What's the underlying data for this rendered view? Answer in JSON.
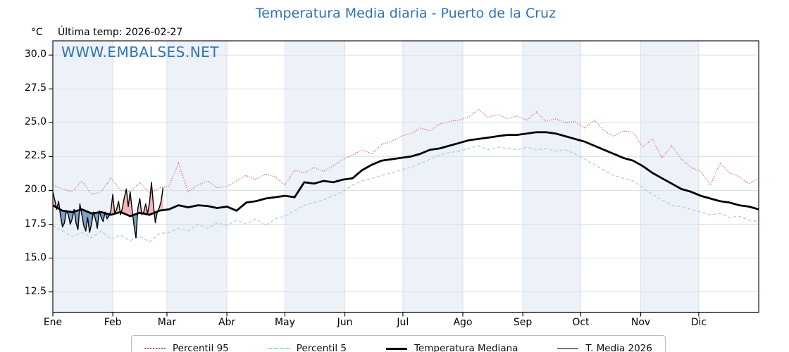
{
  "title": "Temperatura Media diaria - Puerto de la Cruz",
  "y_axis_unit": "°C",
  "last_temp_label": "Última temp: 2026-02-27",
  "watermark": "WWW.EMBALSES.NET",
  "colors": {
    "title": "#2e74b5",
    "watermark": "#2e74b5",
    "percentil95": "#e04444",
    "percentil5": "#a9d1e4",
    "mediana": "#000000",
    "media2026": "#000000",
    "fill_above": "#f2b9bb",
    "fill_below": "#7fa1c9",
    "month_band": "#edf2f9",
    "grid": "#d8dfe9",
    "axis": "#000000",
    "legend_border": "#bdbdbd"
  },
  "legend": {
    "items": [
      {
        "label": "Percentil 95",
        "marker": {
          "color": "#e04444",
          "pattern": "dotted",
          "weight": 2
        }
      },
      {
        "label": "Percentil 5",
        "marker": {
          "color": "#a9d1e4",
          "pattern": "dashed",
          "weight": 2
        }
      },
      {
        "label": "Temperatura Mediana",
        "marker": {
          "color": "#000000",
          "pattern": "solid",
          "weight": 3
        }
      },
      {
        "label": "T. Media 2026",
        "marker": {
          "color": "#000000",
          "pattern": "solid",
          "weight": 1
        }
      }
    ]
  },
  "chart_data": {
    "type": "line",
    "title": "Temperatura Media diaria - Puerto de la Cruz",
    "unit": "°C",
    "last_date": "2026-02-27",
    "x_tick_labels": [
      "Ene",
      "Feb",
      "Mar",
      "Abr",
      "May",
      "Jun",
      "Jul",
      "Ago",
      "Sep",
      "Oct",
      "Nov",
      "Dic"
    ],
    "month_start_days": [
      0,
      31,
      59,
      90,
      120,
      151,
      181,
      212,
      243,
      273,
      304,
      334
    ],
    "days_in_year": 365,
    "yticks": [
      12.5,
      15.0,
      17.5,
      20.0,
      22.5,
      25.0,
      27.5,
      30.0
    ],
    "ylim": [
      11.0,
      31.05
    ],
    "grid": true,
    "legend_position": "bottom",
    "series": [
      {
        "name": "Percentil 95",
        "step_days": 5,
        "values": [
          20.4,
          20.1,
          19.9,
          20.7,
          19.7,
          19.9,
          20.9,
          20.0,
          19.9,
          20.6,
          19.8,
          20.2,
          20.3,
          22.0,
          19.9,
          20.4,
          20.7,
          20.2,
          20.3,
          20.7,
          21.1,
          20.8,
          21.2,
          21.0,
          20.4,
          21.5,
          21.3,
          21.7,
          21.4,
          21.8,
          22.3,
          22.6,
          23.0,
          22.7,
          23.4,
          23.6,
          24.0,
          24.2,
          24.6,
          24.4,
          24.9,
          25.1,
          25.2,
          25.4,
          26.0,
          25.4,
          25.6,
          25.3,
          25.5,
          25.2,
          25.8,
          25.1,
          25.3,
          25.0,
          25.1,
          24.6,
          25.2,
          24.4,
          24.0,
          24.4,
          24.3,
          23.2,
          23.8,
          22.4,
          23.3,
          22.3,
          21.7,
          21.4,
          20.4,
          22.0,
          21.3,
          21.0,
          20.5,
          20.9
        ]
      },
      {
        "name": "Percentil 5",
        "step_days": 5,
        "values": [
          17.4,
          17.0,
          16.6,
          16.9,
          16.5,
          17.0,
          16.4,
          16.7,
          16.3,
          16.6,
          16.2,
          16.8,
          16.9,
          17.2,
          17.0,
          17.5,
          17.2,
          17.6,
          17.4,
          17.8,
          17.5,
          17.9,
          17.4,
          17.9,
          18.1,
          18.5,
          18.9,
          19.1,
          19.3,
          19.6,
          19.9,
          20.4,
          20.7,
          20.9,
          21.1,
          21.3,
          21.5,
          21.7,
          22.0,
          22.3,
          22.6,
          22.8,
          22.9,
          23.1,
          23.3,
          23.0,
          23.2,
          23.1,
          23.0,
          23.2,
          23.0,
          23.1,
          22.9,
          23.0,
          22.7,
          22.3,
          21.9,
          21.5,
          21.1,
          20.9,
          20.7,
          20.2,
          19.7,
          19.3,
          18.9,
          18.8,
          18.6,
          18.4,
          18.2,
          18.3,
          18.0,
          18.1,
          17.8,
          17.7
        ]
      },
      {
        "name": "Temperatura Mediana",
        "step_days": 5,
        "values": [
          18.9,
          18.5,
          18.4,
          18.6,
          18.3,
          18.4,
          18.2,
          18.4,
          18.1,
          18.35,
          18.2,
          18.5,
          18.6,
          18.9,
          18.75,
          18.9,
          18.85,
          18.7,
          18.8,
          18.5,
          19.1,
          19.2,
          19.4,
          19.5,
          19.6,
          19.5,
          20.6,
          20.5,
          20.7,
          20.6,
          20.8,
          20.9,
          21.5,
          21.9,
          22.2,
          22.3,
          22.4,
          22.5,
          22.7,
          23.0,
          23.1,
          23.3,
          23.5,
          23.7,
          23.8,
          23.9,
          24.0,
          24.1,
          24.1,
          24.2,
          24.3,
          24.3,
          24.2,
          24.0,
          23.8,
          23.6,
          23.3,
          23.0,
          22.7,
          22.4,
          22.2,
          21.8,
          21.3,
          20.9,
          20.5,
          20.1,
          19.9,
          19.6,
          19.4,
          19.2,
          19.1,
          18.9,
          18.8,
          18.6
        ]
      },
      {
        "name": "T. Media 2026",
        "step_days": 1,
        "start_day": 0,
        "values": [
          19.9,
          19.3,
          18.6,
          19.2,
          18.1,
          17.3,
          17.6,
          18.5,
          18.2,
          17.5,
          17.9,
          18.6,
          17.6,
          17.1,
          19.0,
          18.2,
          17.4,
          17.0,
          18.0,
          16.9,
          17.5,
          18.4,
          17.9,
          17.2,
          18.5,
          18.0,
          17.7,
          18.4,
          17.9,
          18.1,
          18.5,
          19.7,
          18.3,
          18.6,
          19.2,
          18.2,
          18.7,
          19.5,
          20.1,
          18.8,
          19.9,
          18.5,
          17.4,
          16.5,
          18.7,
          19.4,
          18.2,
          18.4,
          19.0,
          18.3,
          19.1,
          20.6,
          18.9,
          17.6,
          18.4,
          18.7,
          19.2,
          20.2
        ]
      }
    ],
    "fills": {
      "above_median_color": "#f2b9bb",
      "below_median_color": "#7fa1c9"
    }
  }
}
